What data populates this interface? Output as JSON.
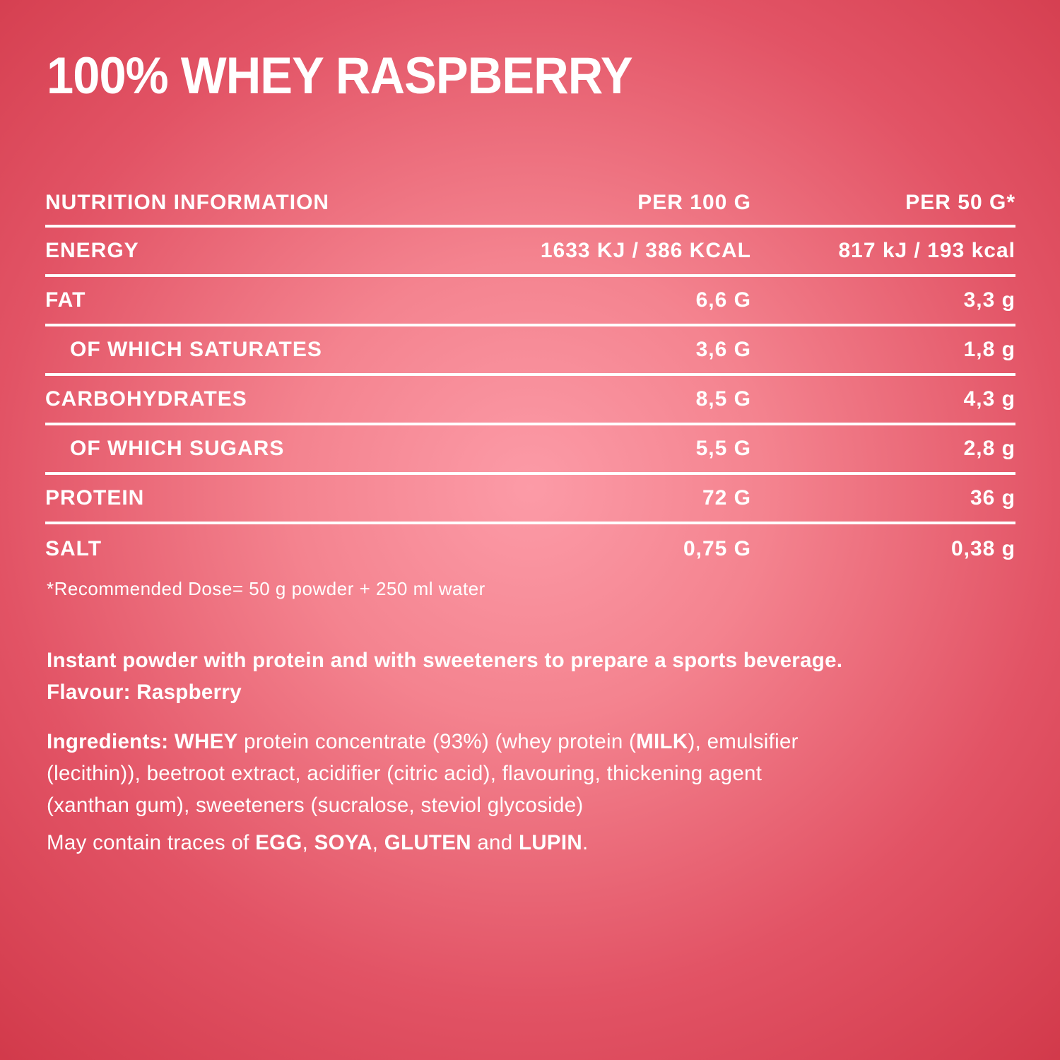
{
  "colors": {
    "bg_center": "#fc9ba7",
    "bg_edge": "#d23a4b",
    "text": "#ffffff"
  },
  "product": {
    "title": "100% WHEY RASPBERRY"
  },
  "nutrition_table": {
    "headers": {
      "col1": "NUTRITION INFORMATION",
      "col2": "PER 100 G",
      "col3": "PER 50 G*"
    },
    "rows": [
      {
        "label": "ENERGY",
        "per100": "1633 KJ / 386 KCAL",
        "per50": "817 kJ / 193 kcal",
        "indent": false
      },
      {
        "label": "FAT",
        "per100": "6,6 G",
        "per50": "3,3 g",
        "indent": false
      },
      {
        "label": "OF WHICH SATURATES",
        "per100": "3,6 G",
        "per50": "1,8 g",
        "indent": true
      },
      {
        "label": "CARBOHYDRATES",
        "per100": "8,5 G",
        "per50": "4,3 g",
        "indent": false
      },
      {
        "label": "OF WHICH SUGARS",
        "per100": "5,5 G",
        "per50": "2,8 g",
        "indent": true
      },
      {
        "label": "PROTEIN",
        "per100": "72 G",
        "per50": "36 g",
        "indent": false
      },
      {
        "label": "SALT",
        "per100": "0,75 G",
        "per50": "0,38 g",
        "indent": false
      }
    ],
    "footnote": "*Recommended Dose= 50 g powder + 250 ml water"
  },
  "description": {
    "line1": "Instant powder with protein and with sweeteners to prepare a sports beverage.",
    "line2": "Flavour: Raspberry"
  },
  "ingredients_lines": [
    [
      {
        "text": "Ingredients: WHEY",
        "bold": true
      },
      {
        "text": " protein concentrate (93%) (whey protein (",
        "bold": false
      },
      {
        "text": "MILK",
        "bold": true
      },
      {
        "text": "), emulsifier",
        "bold": false
      }
    ],
    [
      {
        "text": "(lecithin)), beetroot extract, acidifier (citric acid), flavouring, thickening agent",
        "bold": false
      }
    ],
    [
      {
        "text": "(xanthan gum), sweeteners (sucralose, steviol glycoside)",
        "bold": false
      }
    ]
  ],
  "allergens_segments": [
    {
      "text": "May contain traces of ",
      "bold": false
    },
    {
      "text": "EGG",
      "bold": true
    },
    {
      "text": ", ",
      "bold": false
    },
    {
      "text": "SOYA",
      "bold": true
    },
    {
      "text": ", ",
      "bold": false
    },
    {
      "text": "GLUTEN",
      "bold": true
    },
    {
      "text": " and ",
      "bold": false
    },
    {
      "text": "LUPIN",
      "bold": true
    },
    {
      "text": ".",
      "bold": false
    }
  ]
}
